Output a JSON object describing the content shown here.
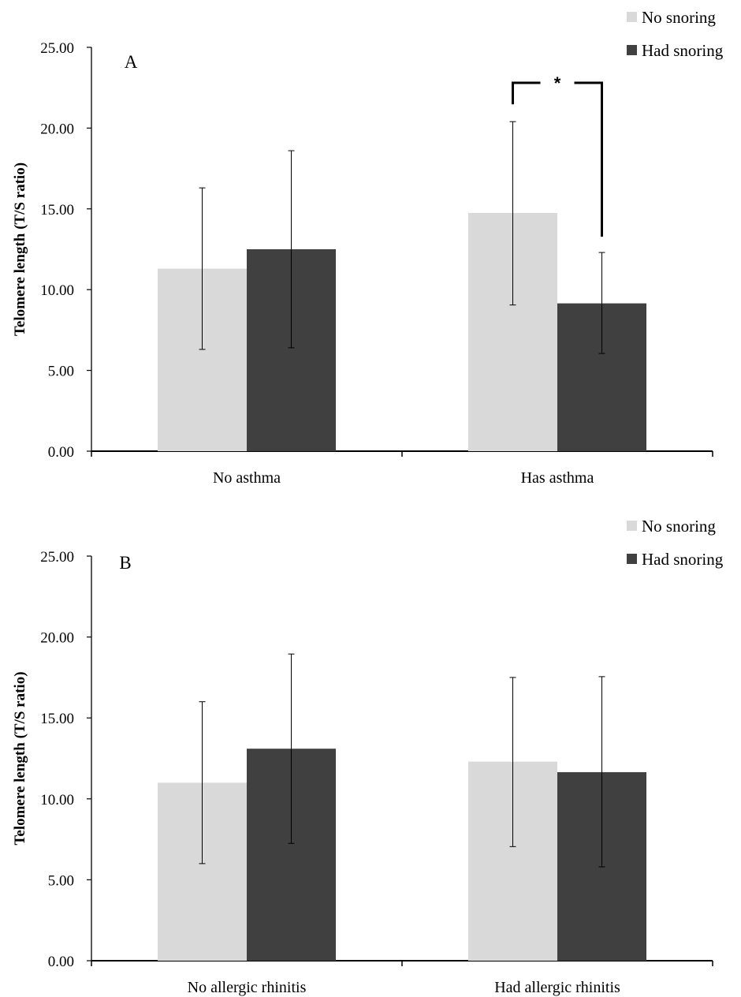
{
  "chart_data": [
    {
      "type": "bar",
      "panel_label": "A",
      "categories": [
        "No asthma",
        "Has asthma"
      ],
      "series": [
        {
          "name": "No snoring",
          "color": "#d9d9d9",
          "values": [
            11.3,
            14.75
          ],
          "error_low": [
            6.3,
            9.05
          ],
          "error_high": [
            16.3,
            20.4
          ]
        },
        {
          "name": "Had snoring",
          "color": "#404040",
          "values": [
            12.5,
            9.15
          ],
          "error_low": [
            6.4,
            6.05
          ],
          "error_high": [
            18.6,
            12.3
          ]
        }
      ],
      "ylabel": "Telomere length (T/S ratio)",
      "ylim": [
        0,
        25
      ],
      "yticks": [
        "0.00",
        "5.00",
        "10.00",
        "15.00",
        "20.00",
        "25.00"
      ],
      "legend_position": "top-right",
      "significance": {
        "category": "Has asthma",
        "label": "*"
      }
    },
    {
      "type": "bar",
      "panel_label": "B",
      "categories": [
        "No allergic rhinitis",
        "Had allergic rhinitis"
      ],
      "series": [
        {
          "name": "No snoring",
          "color": "#d9d9d9",
          "values": [
            11.0,
            12.3
          ],
          "error_low": [
            6.0,
            7.05
          ],
          "error_high": [
            16.0,
            17.5
          ]
        },
        {
          "name": "Had snoring",
          "color": "#404040",
          "values": [
            13.1,
            11.65
          ],
          "error_low": [
            7.25,
            5.8
          ],
          "error_high": [
            18.95,
            17.55
          ]
        }
      ],
      "ylabel": "Telomere length (T/S ratio)",
      "ylim": [
        0,
        25
      ],
      "yticks": [
        "0.00",
        "5.00",
        "10.00",
        "15.00",
        "20.00",
        "25.00"
      ],
      "legend_position": "top-right"
    }
  ]
}
